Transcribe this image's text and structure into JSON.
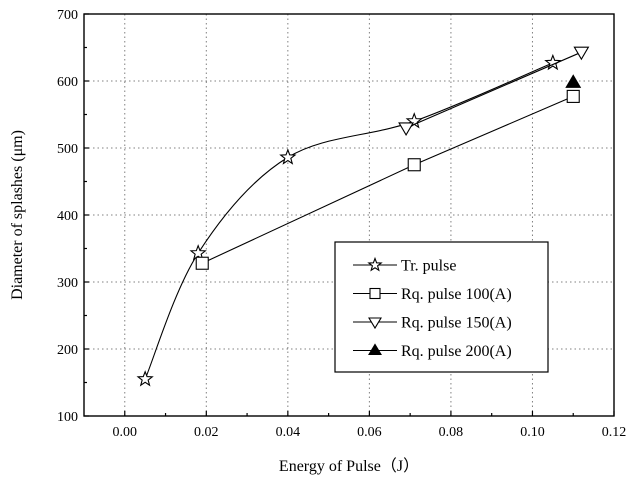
{
  "chart_data": {
    "type": "line",
    "xlabel": "Energy of Pulse（J）",
    "ylabel": "Diameter of splashes (μm)",
    "xlim": [
      -0.01,
      0.12
    ],
    "ylim": [
      100,
      700
    ],
    "xticks": [
      0.0,
      0.02,
      0.04,
      0.06,
      0.08,
      0.1,
      0.12
    ],
    "yticks": [
      100,
      200,
      300,
      400,
      500,
      600,
      700
    ],
    "xtick_labels": [
      "0.00",
      "0.02",
      "0.04",
      "0.06",
      "0.08",
      "0.10",
      "0.12"
    ],
    "ytick_labels": [
      "100",
      "200",
      "300",
      "400",
      "500",
      "600",
      "700"
    ],
    "grid": true,
    "legend_position": "lower-right",
    "series": [
      {
        "name": "Tr. pulse",
        "marker": "star",
        "curve": "smooth",
        "x": [
          0.005,
          0.018,
          0.04,
          0.071,
          0.105
        ],
        "y": [
          155,
          343,
          486,
          540,
          627
        ]
      },
      {
        "name": "Rq. pulse 100(A)",
        "marker": "square",
        "curve": "straight",
        "x": [
          0.019,
          0.071,
          0.11
        ],
        "y": [
          328,
          475,
          577
        ]
      },
      {
        "name": "Rq. pulse 150(A)",
        "marker": "triangle-down",
        "curve": "straight",
        "x": [
          0.069,
          0.112
        ],
        "y": [
          530,
          643
        ]
      },
      {
        "name": "Rq. pulse 200(A)",
        "marker": "triangle-up-filled",
        "curve": "none",
        "x": [
          0.11
        ],
        "y": [
          598
        ]
      }
    ]
  }
}
